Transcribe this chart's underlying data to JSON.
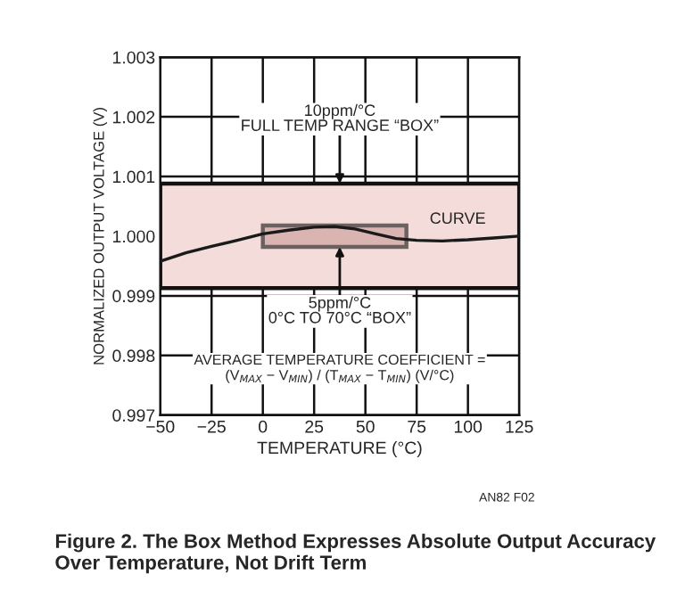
{
  "chart_data": {
    "type": "line",
    "xlabel": "TEMPERATURE (°C)",
    "ylabel": "NORMALIZED OUTPUT VOLTAGE (V)",
    "xlim": [
      -50,
      125
    ],
    "xticks": [
      {
        "value": -50,
        "label": "−50"
      },
      {
        "value": -25,
        "label": "−25"
      },
      0,
      25,
      50,
      75,
      100,
      125
    ],
    "ylim": [
      0.997,
      1.003
    ],
    "yticks": [
      0.997,
      0.998,
      0.999,
      {
        "value": 1.0,
        "label": "1.000"
      },
      1.001,
      1.002,
      1.003
    ],
    "grid": true,
    "series": [
      {
        "name": "CURVE",
        "color": "#1a1a1a",
        "x": [
          -50,
          -37.5,
          -25,
          -12.5,
          0,
          12.5,
          25,
          35,
          45,
          55,
          65,
          75,
          87.5,
          100,
          112.5,
          125
        ],
        "values": [
          0.99958,
          0.99972,
          0.99983,
          0.99993,
          1.00004,
          1.0001,
          1.00015,
          1.00016,
          1.00012,
          1.00004,
          0.99996,
          0.99993,
          0.99992,
          0.99994,
          0.99997,
          1.0
        ]
      },
      {
        "type": "area",
        "color": "#c99a98",
        "x": [
          0,
          0,
          70,
          70,
          0
        ],
        "values": [
          0.99982,
          1.00018,
          1.00018,
          0.99982,
          0.99982
        ]
      }
    ],
    "bands": [
      {
        "axis": "y",
        "from": 0.99913,
        "to": 1.00088,
        "color": "#f3dcd9"
      }
    ],
    "annotations": [
      {
        "text": "10ppm/°C\nFULL TEMP RANGE “BOX”",
        "x": 37.5,
        "y": 1.00088
      },
      {
        "text": "5ppm/°C\n0°C TO 70°C “BOX”",
        "x": 37.5,
        "y": 0.99982
      },
      "AVERAGE TEMPERATURE COEFFICIENT = (V$_{MAX}$ − V$_{MIN}$) / (T$_{MAX}$ − T$_{MIN}$) (V/°C)",
      "AN82 F02",
      "Figure 2. The Box Method Expresses Absolute Output Accuracy Over Temperature, Not Drift Term"
    ]
  }
}
